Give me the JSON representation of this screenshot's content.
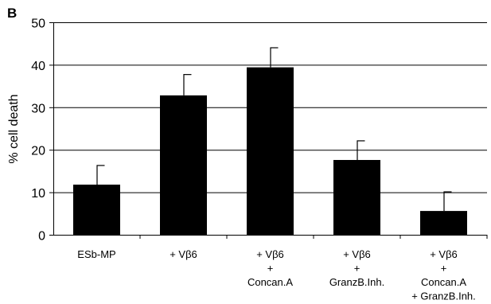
{
  "panel_label": "B",
  "chart_data": {
    "type": "bar",
    "ylabel": "% cell death",
    "xlabel": "",
    "ylim": [
      0,
      50
    ],
    "yticks": [
      0,
      10,
      20,
      30,
      40,
      50
    ],
    "grid": "horizontal",
    "legend": "none",
    "categories": [
      [
        "ESb-MP"
      ],
      [
        "+ Vβ6"
      ],
      [
        "+ Vβ6",
        "+",
        "Concan.A"
      ],
      [
        "+ Vβ6",
        "+",
        "GranzB.Inh."
      ],
      [
        "+ Vβ6",
        "+",
        "Concan.A",
        "+ GranzB.Inh."
      ]
    ],
    "values": [
      11.8,
      32.8,
      39.4,
      17.6,
      5.6
    ],
    "error_upper": [
      4.6,
      5.0,
      4.7,
      4.6,
      4.6
    ],
    "bar_color": "#000000",
    "grid_color": "#000000"
  }
}
